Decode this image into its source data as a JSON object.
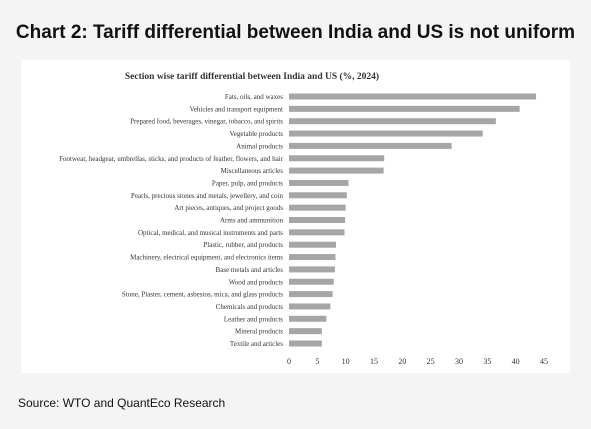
{
  "page": {
    "title": "Chart 2: Tariff differential between India and US is not uniform",
    "source": "Source: WTO and QuantEco Research"
  },
  "colors": {
    "bar": "#a6a6a6",
    "background": "#f4f4f4",
    "panel": "#ffffff",
    "text": "#111111",
    "axis_text": "#333333"
  },
  "chart_data": {
    "type": "bar",
    "orientation": "horizontal",
    "title": "Section wise tariff differential between India and US (%, 2024)",
    "xlabel": "",
    "ylabel": "",
    "xlim": [
      0,
      45
    ],
    "xticks": [
      0,
      5,
      10,
      15,
      20,
      25,
      30,
      35,
      40,
      45
    ],
    "grid": false,
    "categories": [
      "Fats, oils, and waxes",
      "Vehicles and transport equipment",
      "Prepared food, beverages, vinegar, tobacco, and spirits",
      "Vegetable products",
      "Animal products",
      "Footwear, headgear, umbrellas, sticks, and products of feather, flowers, and hair",
      "Miscellaneous articles",
      "Paper, pulp, and products",
      "Pearls, precious stones and metals, jewellery, and coin",
      "Art pieces, antiques, and project goods",
      "Arms and ammunition",
      "Optical, medical, and musical instruments and parts",
      "Plastic, rubber, and products",
      "Machinery, electrical equipment, and electronics items",
      "Base metals and articles",
      "Wood and products",
      "Stone, Plaster, cement, asbestos, mica, and glass products",
      "Chemicals and products",
      "Leather and products",
      "Mineral products",
      "Textile and articles"
    ],
    "values": [
      43.6,
      40.7,
      36.5,
      34.2,
      28.7,
      16.8,
      16.7,
      10.5,
      10.2,
      10.0,
      9.9,
      9.8,
      8.3,
      8.2,
      8.1,
      7.9,
      7.7,
      7.3,
      6.6,
      5.8,
      5.8
    ]
  }
}
